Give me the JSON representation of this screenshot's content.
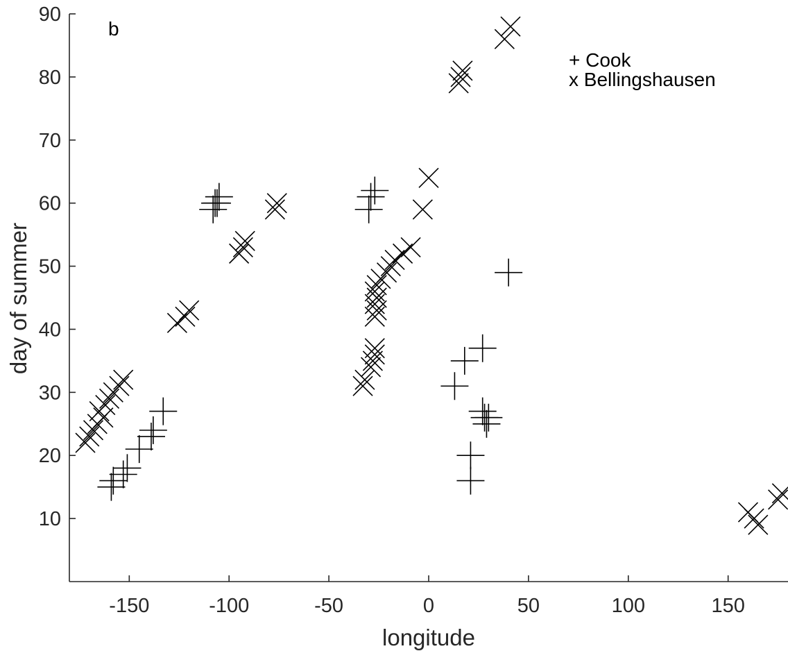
{
  "chart_data": {
    "type": "scatter",
    "panel_label": "b",
    "xlabel": "longitude",
    "ylabel": "day of summer",
    "xlim": [
      -180,
      180
    ],
    "ylim": [
      0,
      90
    ],
    "xticks": [
      -150,
      -100,
      -50,
      0,
      50,
      100,
      150
    ],
    "yticks": [
      10,
      20,
      30,
      40,
      50,
      60,
      70,
      80,
      90
    ],
    "grid": false,
    "legend_position": "top-right",
    "legend": [
      "+ Cook",
      "x Bellingshausen"
    ],
    "series": [
      {
        "name": "Cook",
        "marker": "plus",
        "points": [
          [
            -159,
            15
          ],
          [
            -158,
            16
          ],
          [
            -153,
            17
          ],
          [
            -151,
            18
          ],
          [
            -145,
            21
          ],
          [
            -139,
            23
          ],
          [
            -138,
            24
          ],
          [
            -133,
            27
          ],
          [
            -108,
            59
          ],
          [
            -107,
            60
          ],
          [
            -105,
            61
          ],
          [
            -106,
            60
          ],
          [
            -30,
            59
          ],
          [
            -29,
            61
          ],
          [
            -27,
            62
          ],
          [
            13,
            31
          ],
          [
            18,
            35
          ],
          [
            27,
            37
          ],
          [
            27,
            27
          ],
          [
            28,
            26
          ],
          [
            29,
            25
          ],
          [
            30,
            26
          ],
          [
            21,
            20
          ],
          [
            21,
            16
          ],
          [
            40,
            49
          ]
        ]
      },
      {
        "name": "Bellingshausen",
        "marker": "x",
        "points": [
          [
            -172,
            22
          ],
          [
            -170,
            23
          ],
          [
            -168,
            24
          ],
          [
            -166,
            25
          ],
          [
            -165,
            27
          ],
          [
            -163,
            26
          ],
          [
            -162,
            28
          ],
          [
            -160,
            29
          ],
          [
            -158,
            30
          ],
          [
            -155,
            31
          ],
          [
            -153,
            32
          ],
          [
            -126,
            41
          ],
          [
            -122,
            42
          ],
          [
            -120,
            43
          ],
          [
            -95,
            52
          ],
          [
            -93,
            53
          ],
          [
            -92,
            54
          ],
          [
            -77,
            59
          ],
          [
            -76,
            60
          ],
          [
            -33,
            31
          ],
          [
            -32,
            32
          ],
          [
            -29,
            34
          ],
          [
            -28,
            35
          ],
          [
            -27,
            36
          ],
          [
            -27,
            37
          ],
          [
            -27,
            42
          ],
          [
            -26,
            43
          ],
          [
            -27,
            44
          ],
          [
            -26,
            45
          ],
          [
            -27,
            46
          ],
          [
            -26,
            47
          ],
          [
            -24,
            48
          ],
          [
            -21,
            49
          ],
          [
            -19,
            50
          ],
          [
            -17,
            51
          ],
          [
            -13,
            52
          ],
          [
            -9,
            53
          ],
          [
            -3,
            59
          ],
          [
            0,
            64
          ],
          [
            15,
            79
          ],
          [
            16,
            80
          ],
          [
            17,
            81
          ],
          [
            38,
            86
          ],
          [
            41,
            88
          ],
          [
            160,
            11
          ],
          [
            163,
            10
          ],
          [
            165,
            9
          ],
          [
            175,
            13
          ],
          [
            177,
            14
          ]
        ]
      }
    ]
  }
}
